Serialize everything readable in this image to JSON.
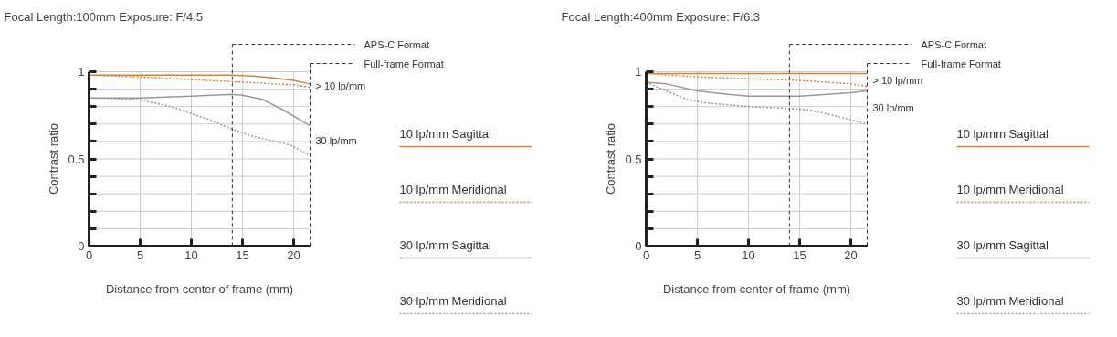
{
  "chart_data": [
    {
      "type": "line",
      "title": "Focal Length:100mm  Exposure: F/4.5",
      "xlabel": "Distance from center of frame (mm)",
      "ylabel": "Contrast ratio",
      "xlim": [
        0,
        21.6
      ],
      "ylim": [
        0,
        1
      ],
      "xticks": [
        0,
        5,
        10,
        15,
        20
      ],
      "yticks": [
        0,
        {
          "value": 0.1,
          "label": null
        },
        {
          "value": 0.2,
          "label": null
        },
        {
          "value": 0.3,
          "label": null
        },
        {
          "value": 0.4,
          "label": null
        },
        0.5,
        {
          "value": 0.6,
          "label": null
        },
        {
          "value": 0.7,
          "label": null
        },
        {
          "value": 0.8,
          "label": null
        },
        {
          "value": 0.9,
          "label": null
        },
        1
      ],
      "grid": true,
      "legend": "right",
      "series": [
        {
          "name": "10 lp/mm Sagittal",
          "color": "#c8874a",
          "line_style": "solid",
          "x": [
            0,
            5,
            10,
            14,
            16,
            18,
            20,
            21.6
          ],
          "values": [
            0.98,
            0.98,
            0.98,
            0.98,
            0.975,
            0.965,
            0.95,
            0.93
          ]
        },
        {
          "name": "10 lp/mm Meridional",
          "color": "#c8874a",
          "line_style": "dotted",
          "x": [
            0,
            5,
            10,
            15,
            20,
            21.6
          ],
          "values": [
            0.98,
            0.97,
            0.955,
            0.94,
            0.925,
            0.91
          ]
        },
        {
          "name": "30 lp/mm Sagittal",
          "color": "#999999",
          "line_style": "solid",
          "x": [
            0,
            5,
            10,
            14,
            15,
            17,
            19,
            21.6
          ],
          "values": [
            0.85,
            0.85,
            0.86,
            0.87,
            0.865,
            0.84,
            0.78,
            0.69
          ]
        },
        {
          "name": "30 lp/mm Meridional",
          "color": "#999999",
          "line_style": "dotted",
          "x": [
            0,
            5,
            8,
            10,
            12,
            14,
            16,
            19,
            20,
            21.6
          ],
          "values": [
            0.85,
            0.84,
            0.8,
            0.76,
            0.72,
            0.67,
            0.63,
            0.59,
            0.57,
            0.52
          ]
        }
      ],
      "ref_lines": [
        {
          "axis": "x",
          "value": 14,
          "label": "APS-C Format",
          "line_style": "dashed",
          "color": "#333333"
        },
        {
          "axis": "x",
          "value": 21.6,
          "label": "Full-frame Format",
          "line_style": "dashed",
          "color": "#333333"
        }
      ],
      "annotations": [
        "> 10 lp/mm",
        "30 lp/mm"
      ]
    },
    {
      "type": "line",
      "title": "Focal Length:400mm  Exposure: F/6.3",
      "xlabel": "Distance from center of frame (mm)",
      "ylabel": "Contrast ratio",
      "xlim": [
        0,
        21.6
      ],
      "ylim": [
        0,
        1
      ],
      "xticks": [
        0,
        5,
        10,
        15,
        20
      ],
      "yticks": [
        0,
        {
          "value": 0.1,
          "label": null
        },
        {
          "value": 0.2,
          "label": null
        },
        {
          "value": 0.3,
          "label": null
        },
        {
          "value": 0.4,
          "label": null
        },
        0.5,
        {
          "value": 0.6,
          "label": null
        },
        {
          "value": 0.7,
          "label": null
        },
        {
          "value": 0.8,
          "label": null
        },
        {
          "value": 0.9,
          "label": null
        },
        1
      ],
      "grid": true,
      "legend": "right",
      "series": [
        {
          "name": "10 lp/mm Sagittal",
          "color": "#c8874a",
          "line_style": "solid",
          "x": [
            0,
            5,
            10,
            15,
            20,
            21.6
          ],
          "values": [
            0.99,
            0.99,
            0.99,
            0.99,
            0.99,
            0.99
          ]
        },
        {
          "name": "10 lp/mm Meridional",
          "color": "#c8874a",
          "line_style": "dotted",
          "x": [
            0,
            5,
            10,
            15,
            20,
            21.6
          ],
          "values": [
            0.99,
            0.97,
            0.96,
            0.95,
            0.93,
            0.915
          ]
        },
        {
          "name": "30 lp/mm Sagittal",
          "color": "#999999",
          "line_style": "solid",
          "x": [
            0,
            2,
            5,
            8,
            10,
            15,
            20,
            21.6
          ],
          "values": [
            0.94,
            0.93,
            0.89,
            0.87,
            0.86,
            0.86,
            0.88,
            0.89
          ]
        },
        {
          "name": "30 lp/mm Meridional",
          "color": "#999999",
          "line_style": "dotted",
          "x": [
            0,
            2,
            4,
            6,
            10,
            14,
            16,
            19,
            21.6
          ],
          "values": [
            0.94,
            0.89,
            0.84,
            0.82,
            0.8,
            0.79,
            0.78,
            0.74,
            0.7
          ]
        }
      ],
      "ref_lines": [
        {
          "axis": "x",
          "value": 14,
          "label": "APS-C Format",
          "line_style": "dashed",
          "color": "#333333"
        },
        {
          "axis": "x",
          "value": 21.6,
          "label": "Full-frame Format",
          "line_style": "dashed",
          "color": "#333333"
        }
      ],
      "annotations": [
        "> 10 lp/mm",
        "30 lp/mm"
      ]
    }
  ]
}
